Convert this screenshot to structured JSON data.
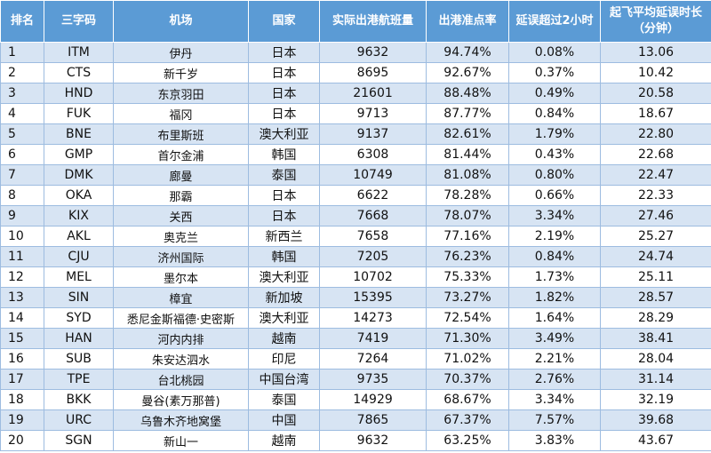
{
  "headers": {
    "rank": "排名",
    "code": "三字码",
    "airport": "机场",
    "country": "国家",
    "flights": "实际出港航班量",
    "ontime": "出港准点率",
    "delay2h": "延误超过2小时",
    "avgdelay_line1": "起飞平均延误时长",
    "avgdelay_line2": "（分钟）"
  },
  "rows": [
    {
      "rank": "1",
      "code": "ITM",
      "airport": "伊丹",
      "country": "日本",
      "flights": "9632",
      "ontime": "94.74%",
      "delay2h": "0.08%",
      "avgdelay": "13.06"
    },
    {
      "rank": "2",
      "code": "CTS",
      "airport": "新千岁",
      "country": "日本",
      "flights": "8695",
      "ontime": "92.67%",
      "delay2h": "0.37%",
      "avgdelay": "10.42"
    },
    {
      "rank": "3",
      "code": "HND",
      "airport": "东京羽田",
      "country": "日本",
      "flights": "21601",
      "ontime": "88.48%",
      "delay2h": "0.49%",
      "avgdelay": "20.58"
    },
    {
      "rank": "4",
      "code": "FUK",
      "airport": "福冈",
      "country": "日本",
      "flights": "9713",
      "ontime": "87.77%",
      "delay2h": "0.84%",
      "avgdelay": "18.67"
    },
    {
      "rank": "5",
      "code": "BNE",
      "airport": "布里斯班",
      "country": "澳大利亚",
      "flights": "9137",
      "ontime": "82.61%",
      "delay2h": "1.79%",
      "avgdelay": "22.80"
    },
    {
      "rank": "6",
      "code": "GMP",
      "airport": "首尔金浦",
      "country": "韩国",
      "flights": "6308",
      "ontime": "81.44%",
      "delay2h": "0.43%",
      "avgdelay": "22.68"
    },
    {
      "rank": "7",
      "code": "DMK",
      "airport": "廊曼",
      "country": "泰国",
      "flights": "10749",
      "ontime": "81.08%",
      "delay2h": "0.80%",
      "avgdelay": "22.47"
    },
    {
      "rank": "8",
      "code": "OKA",
      "airport": "那霸",
      "country": "日本",
      "flights": "6622",
      "ontime": "78.28%",
      "delay2h": "0.66%",
      "avgdelay": "22.33"
    },
    {
      "rank": "9",
      "code": "KIX",
      "airport": "关西",
      "country": "日本",
      "flights": "7668",
      "ontime": "78.07%",
      "delay2h": "3.34%",
      "avgdelay": "27.46"
    },
    {
      "rank": "10",
      "code": "AKL",
      "airport": "奥克兰",
      "country": "新西兰",
      "flights": "7658",
      "ontime": "77.16%",
      "delay2h": "2.19%",
      "avgdelay": "25.27"
    },
    {
      "rank": "11",
      "code": "CJU",
      "airport": "济州国际",
      "country": "韩国",
      "flights": "7205",
      "ontime": "76.23%",
      "delay2h": "0.84%",
      "avgdelay": "24.74"
    },
    {
      "rank": "12",
      "code": "MEL",
      "airport": "墨尔本",
      "country": "澳大利亚",
      "flights": "10702",
      "ontime": "75.33%",
      "delay2h": "1.73%",
      "avgdelay": "25.11"
    },
    {
      "rank": "13",
      "code": "SIN",
      "airport": "樟宜",
      "country": "新加坡",
      "flights": "15395",
      "ontime": "73.27%",
      "delay2h": "1.82%",
      "avgdelay": "28.57"
    },
    {
      "rank": "14",
      "code": "SYD",
      "airport": "悉尼金斯福德·史密斯",
      "country": "澳大利亚",
      "flights": "14273",
      "ontime": "72.54%",
      "delay2h": "1.64%",
      "avgdelay": "28.29"
    },
    {
      "rank": "15",
      "code": "HAN",
      "airport": "河内内排",
      "country": "越南",
      "flights": "7419",
      "ontime": "71.30%",
      "delay2h": "3.49%",
      "avgdelay": "38.41"
    },
    {
      "rank": "16",
      "code": "SUB",
      "airport": "朱安达泗水",
      "country": "印尼",
      "flights": "7264",
      "ontime": "71.02%",
      "delay2h": "2.21%",
      "avgdelay": "28.04"
    },
    {
      "rank": "17",
      "code": "TPE",
      "airport": "台北桃园",
      "country": "中国台湾",
      "flights": "9735",
      "ontime": "70.37%",
      "delay2h": "2.76%",
      "avgdelay": "31.14"
    },
    {
      "rank": "18",
      "code": "BKK",
      "airport": "曼谷(素万那普)",
      "country": "泰国",
      "flights": "14929",
      "ontime": "68.67%",
      "delay2h": "3.34%",
      "avgdelay": "32.19"
    },
    {
      "rank": "19",
      "code": "URC",
      "airport": "乌鲁木齐地窝堡",
      "country": "中国",
      "flights": "7865",
      "ontime": "67.37%",
      "delay2h": "7.57%",
      "avgdelay": "39.68"
    },
    {
      "rank": "20",
      "code": "SGN",
      "airport": "新山一",
      "country": "越南",
      "flights": "9632",
      "ontime": "63.25%",
      "delay2h": "3.83%",
      "avgdelay": "43.67"
    }
  ]
}
